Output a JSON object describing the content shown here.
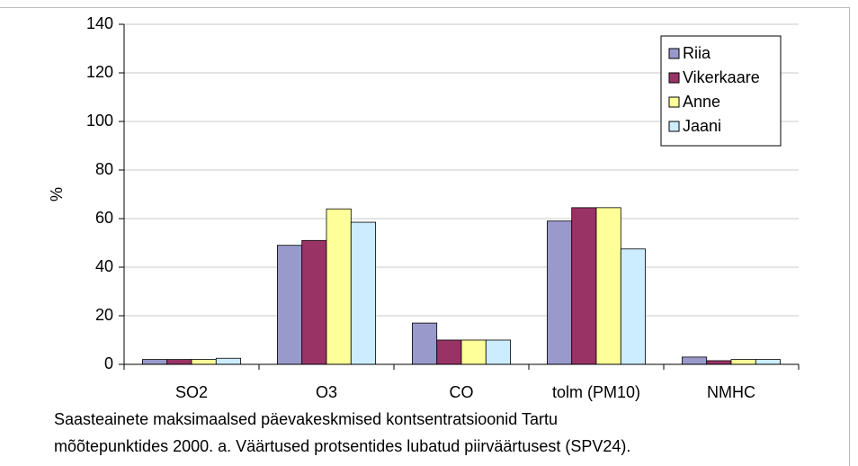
{
  "chart_data": {
    "type": "bar",
    "ylabel": "%",
    "categories": [
      "SO2",
      "O3",
      "CO",
      "tolm (PM10)",
      "NMHC"
    ],
    "series": [
      {
        "name": "Riia",
        "color": "#9999cc",
        "values": [
          2,
          49,
          17,
          59,
          3
        ]
      },
      {
        "name": "Vikerkaare",
        "color": "#993366",
        "values": [
          2,
          51,
          10,
          64.5,
          1.5
        ]
      },
      {
        "name": "Anne",
        "color": "#ffff99",
        "values": [
          2,
          64,
          10,
          64.5,
          2
        ]
      },
      {
        "name": "Jaani",
        "color": "#ccecff",
        "values": [
          2.5,
          58.5,
          10,
          47.5,
          2
        ]
      }
    ],
    "ylim": [
      0,
      140
    ],
    "yticks": [
      0,
      20,
      40,
      60,
      80,
      100,
      120,
      140
    ],
    "grid": true,
    "legend": "top-right",
    "caption": [
      "Saasteainete maksimaalsed päevakeskmised kontsentratsioonid Tartu",
      "mõõtepunktides 2000. a. Väärtused protsentides lubatud piirväärtusest (SPV24)."
    ]
  }
}
